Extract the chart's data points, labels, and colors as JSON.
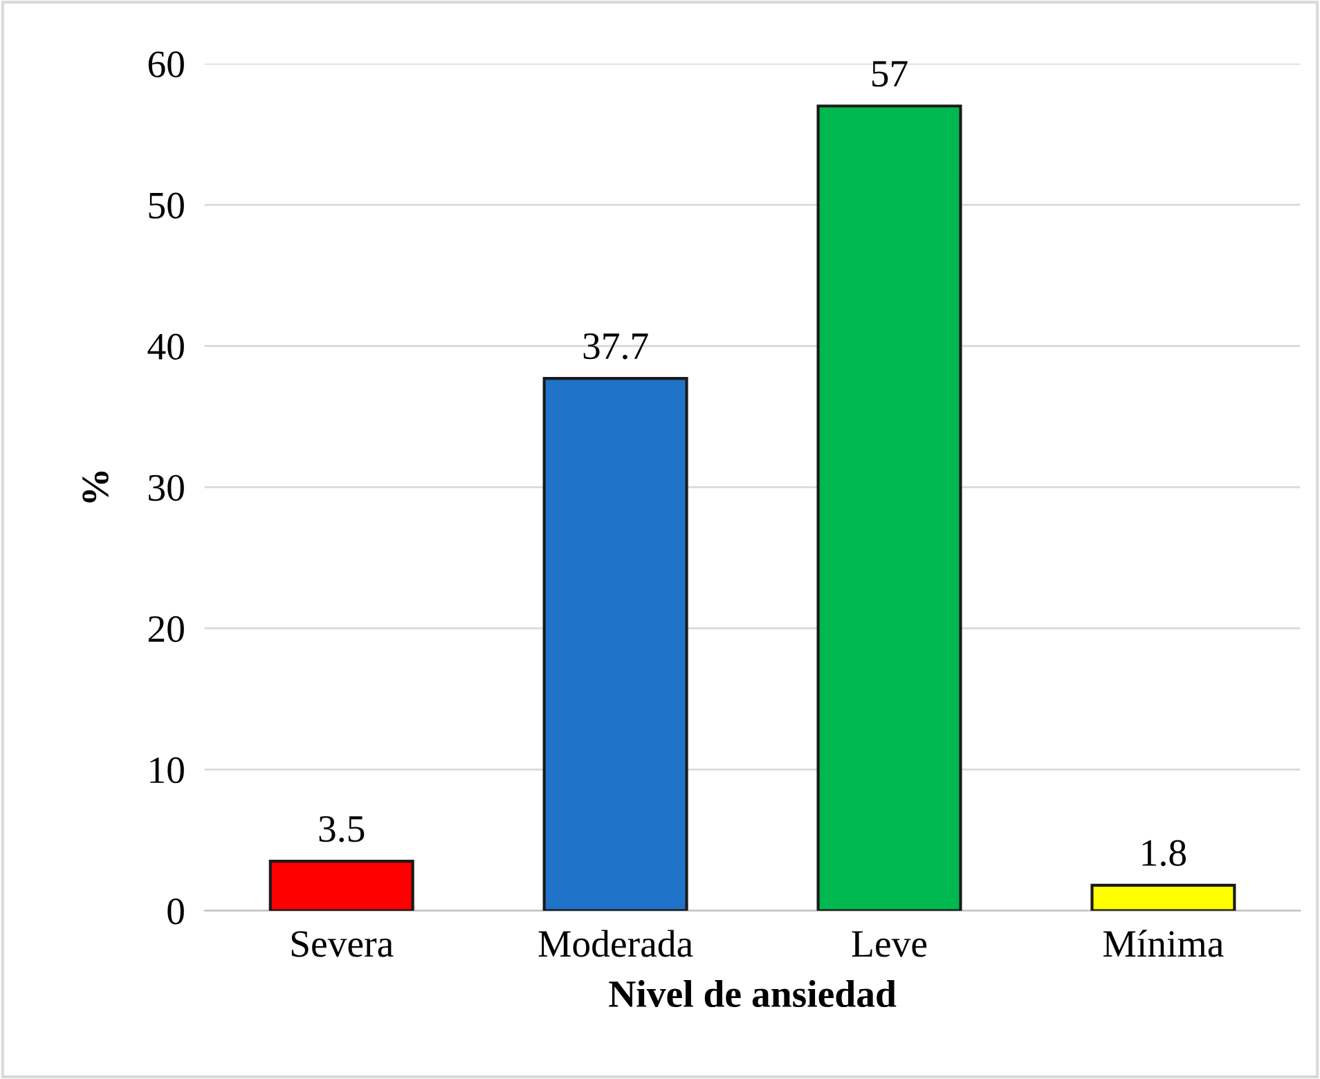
{
  "chart_data": {
    "type": "bar",
    "xlabel": "Nivel de ansiedad",
    "ylabel": "%",
    "categories": [
      "Severa",
      "Moderada",
      "Leve",
      "Mínima"
    ],
    "values": [
      3.5,
      37.7,
      57,
      1.8
    ],
    "colors": [
      "#ff0000",
      "#1f74c9",
      "#00b850",
      "#ffff00"
    ],
    "ylim": [
      0,
      60
    ],
    "yticks": [
      0,
      10,
      20,
      30,
      40,
      50,
      60
    ],
    "grid": "y",
    "data_labels": true
  }
}
